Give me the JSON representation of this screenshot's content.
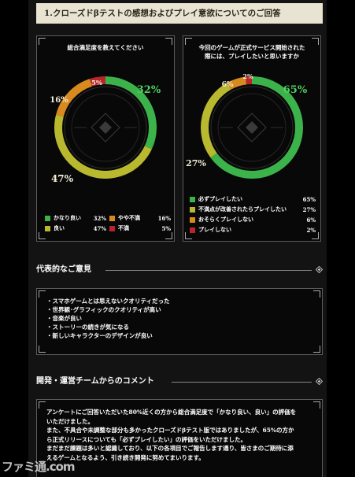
{
  "section_title": "1.クローズドβテストの感想およびプレイ意欲についてのご回答",
  "colors": {
    "green": "#3cb34a",
    "olive": "#b8b92f",
    "orange": "#d98a1e",
    "red": "#b8262b"
  },
  "chart_data": [
    {
      "type": "pie",
      "title": "総合満足度を教えてください",
      "categories": [
        "かなり良い",
        "良い",
        "やや不満",
        "不満"
      ],
      "values": [
        32,
        47,
        16,
        5
      ],
      "slice_labels": [
        "32%",
        "47%",
        "16%",
        "5%"
      ],
      "legend_values": [
        "32%",
        "47%",
        "16%",
        "5%"
      ]
    },
    {
      "type": "pie",
      "title_lines": [
        "今回のゲームが正式サービス開始された",
        "際には、プレイしたいと思いますか"
      ],
      "categories": [
        "必ずプレイしたい",
        "不満点が改善されたらプレイしたい",
        "おそらくプレイしない",
        "プレイしない"
      ],
      "values": [
        65,
        27,
        6,
        2
      ],
      "slice_labels": [
        "65%",
        "27%",
        "6%",
        "2%"
      ],
      "legend_values": [
        "65%",
        "27%",
        "6%",
        "2%"
      ]
    }
  ],
  "opinions": {
    "heading": "代表的なご意見",
    "items": [
      "・スマホゲームとは思えないクオリティだった",
      "・世界観･グラフィックのクオリティが高い",
      "・音楽が良い",
      "・ストーリーの続きが気になる",
      "・新しいキャラクターのデザインが良い"
    ]
  },
  "comment": {
    "heading": "開発・運営チームからのコメント",
    "lines": [
      "アンケートにご回答いただいた80%近くの方から総合満足度で「かなり良い、良い」の評価を",
      "いただけました。",
      "また、不具合や未調整な部分も多かったクローズドβテスト版ではありましたが、65%の方か",
      "ら正式リリースについても「必ずプレイしたい」の評価をいただけました。",
      "まだまだ課題は多いと認識しており、以下の各項目でご報告します通り、皆さまのご期待に添",
      "えるゲームとなるよう、引き続き開発に努めてまいります。"
    ]
  },
  "watermark": "ファミ通.com"
}
